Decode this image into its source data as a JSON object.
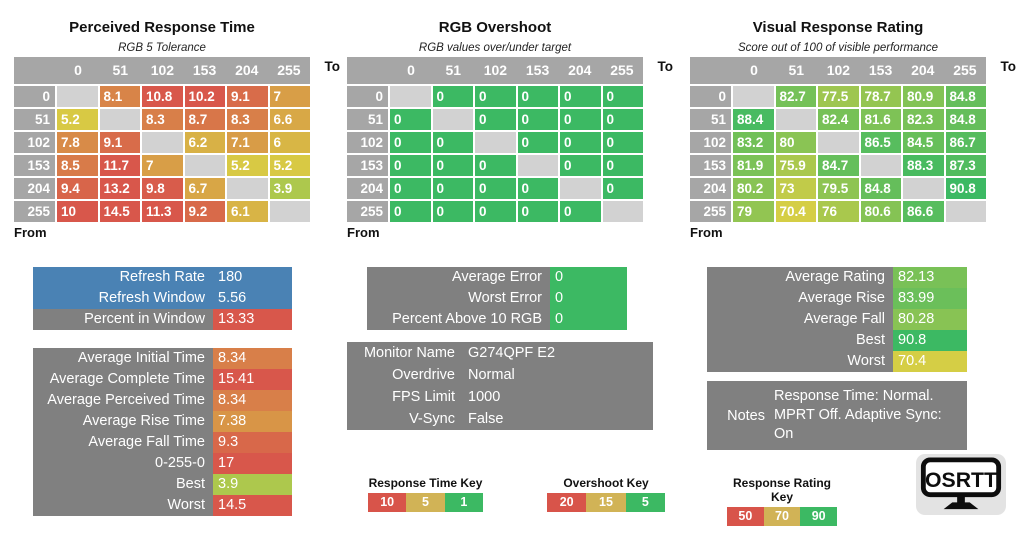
{
  "colors": {
    "header_gray": "#a6a6a6",
    "blank_cell": "#d2d2d2",
    "box_gray": "#808080",
    "blue": "#4a82b4",
    "cell_text": "#ffffff"
  },
  "scales": {
    "response_time": {
      "stops": [
        {
          "v": 1,
          "c": "#3cb963"
        },
        {
          "v": 5,
          "c": "#d8ce44"
        },
        {
          "v": 10,
          "c": "#d8574b"
        }
      ]
    },
    "overshoot": {
      "stops": [
        {
          "v": 5,
          "c": "#3cb963"
        },
        {
          "v": 15,
          "c": "#d8ce44"
        },
        {
          "v": 20,
          "c": "#d8574b"
        }
      ]
    },
    "rating": {
      "stops": [
        {
          "v": 50,
          "c": "#d8574b"
        },
        {
          "v": 70,
          "c": "#d8ce44"
        },
        {
          "v": 90,
          "c": "#3cb963"
        }
      ]
    }
  },
  "tables": [
    {
      "title": "Perceived Response Time",
      "subtitle": "RGB 5 Tolerance",
      "scale": "response_time",
      "to": "To",
      "from": "From",
      "headers": [
        0,
        51,
        102,
        153,
        204,
        255
      ],
      "row_labels": [
        0,
        51,
        102,
        153,
        204,
        255
      ],
      "rows": [
        [
          null,
          8.1,
          10.8,
          10.2,
          9.1,
          7
        ],
        [
          5.2,
          null,
          8.3,
          8.7,
          8.3,
          6.6
        ],
        [
          7.8,
          9.1,
          null,
          6.2,
          7.1,
          6
        ],
        [
          8.5,
          11.7,
          7,
          null,
          5.2,
          5.2
        ],
        [
          9.4,
          13.2,
          9.8,
          6.7,
          null,
          3.9
        ],
        [
          10,
          14.5,
          11.3,
          9.2,
          6.1,
          null
        ]
      ]
    },
    {
      "title": "RGB Overshoot",
      "subtitle": "RGB values over/under target",
      "scale": "overshoot",
      "to": "To",
      "from": "From",
      "headers": [
        0,
        51,
        102,
        153,
        204,
        255
      ],
      "row_labels": [
        0,
        51,
        102,
        153,
        204,
        255
      ],
      "rows": [
        [
          null,
          0,
          0,
          0,
          0,
          0
        ],
        [
          0,
          null,
          0,
          0,
          0,
          0
        ],
        [
          0,
          0,
          null,
          0,
          0,
          0
        ],
        [
          0,
          0,
          0,
          null,
          0,
          0
        ],
        [
          0,
          0,
          0,
          0,
          null,
          0
        ],
        [
          0,
          0,
          0,
          0,
          0,
          null
        ]
      ]
    },
    {
      "title": "Visual Response Rating",
      "subtitle": "Score out of 100 of visible performance",
      "scale": "rating",
      "to": "To",
      "from": "From",
      "headers": [
        0,
        51,
        102,
        153,
        204,
        255
      ],
      "row_labels": [
        0,
        51,
        102,
        153,
        204,
        255
      ],
      "rows": [
        [
          null,
          82.7,
          77.5,
          78.7,
          80.9,
          84.8
        ],
        [
          88.4,
          null,
          82.4,
          81.6,
          82.3,
          84.8
        ],
        [
          83.2,
          80,
          null,
          86.5,
          84.5,
          86.7
        ],
        [
          81.9,
          75.9,
          84.7,
          null,
          88.3,
          87.3
        ],
        [
          80.2,
          73,
          79.5,
          84.8,
          null,
          90.8
        ],
        [
          79,
          70.4,
          76,
          80.6,
          86.6,
          null
        ]
      ]
    }
  ],
  "stat_boxes": {
    "refresh": {
      "rows": [
        {
          "label": "Refresh Rate",
          "value": "180",
          "row_bg": "#4a82b4"
        },
        {
          "label": "Refresh Window",
          "value": "5.56",
          "row_bg": "#4a82b4"
        },
        {
          "label": "Percent in Window",
          "value": "13.33",
          "scale": "response_time"
        }
      ]
    },
    "times": {
      "rows": [
        {
          "label": "Average Initial Time",
          "value": "8.34",
          "scale": "response_time"
        },
        {
          "label": "Average Complete Time",
          "value": "15.41",
          "scale": "response_time"
        },
        {
          "label": "Average Perceived Time",
          "value": "8.34",
          "scale": "response_time"
        },
        {
          "label": "Average Rise Time",
          "value": "7.38",
          "scale": "response_time"
        },
        {
          "label": "Average Fall Time",
          "value": "9.3",
          "scale": "response_time"
        },
        {
          "label": "0-255-0",
          "value": "17",
          "scale": "response_time"
        },
        {
          "label": "Best",
          "value": "3.9",
          "scale": "response_time"
        },
        {
          "label": "Worst",
          "value": "14.5",
          "scale": "response_time"
        }
      ]
    },
    "error": {
      "rows": [
        {
          "label": "Average Error",
          "value": "0",
          "scale": "overshoot"
        },
        {
          "label": "Worst Error",
          "value": "0",
          "scale": "overshoot"
        },
        {
          "label": "Percent Above 10 RGB",
          "value": "0",
          "scale": "overshoot"
        }
      ]
    },
    "monitor": {
      "rows": [
        {
          "label": "Monitor Name",
          "value": "G274QPF E2"
        },
        {
          "label": "Overdrive",
          "value": "Normal"
        },
        {
          "label": "FPS Limit",
          "value": "1000"
        },
        {
          "label": "V-Sync",
          "value": "False"
        }
      ]
    },
    "rating": {
      "rows": [
        {
          "label": "Average Rating",
          "value": "82.13",
          "scale": "rating"
        },
        {
          "label": "Average Rise",
          "value": "83.99",
          "scale": "rating"
        },
        {
          "label": "Average Fall",
          "value": "80.28",
          "scale": "rating"
        },
        {
          "label": "Best",
          "value": "90.8",
          "scale": "rating"
        },
        {
          "label": "Worst",
          "value": "70.4",
          "scale": "rating"
        }
      ]
    }
  },
  "notes": {
    "label": "Notes",
    "text": "Response Time: Normal. MPRT Off. Adaptive Sync: On"
  },
  "keys": [
    {
      "title": "Response Time Key",
      "cells": [
        {
          "label": "10",
          "color": "#d8544a"
        },
        {
          "label": "5",
          "color": "#d1b356"
        },
        {
          "label": "1",
          "color": "#3cb963"
        }
      ]
    },
    {
      "title": "Overshoot Key",
      "cells": [
        {
          "label": "20",
          "color": "#d8544a"
        },
        {
          "label": "15",
          "color": "#d1b356"
        },
        {
          "label": "5",
          "color": "#3cb963"
        }
      ]
    },
    {
      "title": "Response Rating Key",
      "cells": [
        {
          "label": "50",
          "color": "#d8544a"
        },
        {
          "label": "70",
          "color": "#d1b356"
        },
        {
          "label": "90",
          "color": "#3cb963"
        }
      ]
    }
  ],
  "logo": {
    "text": "OSRTT"
  }
}
